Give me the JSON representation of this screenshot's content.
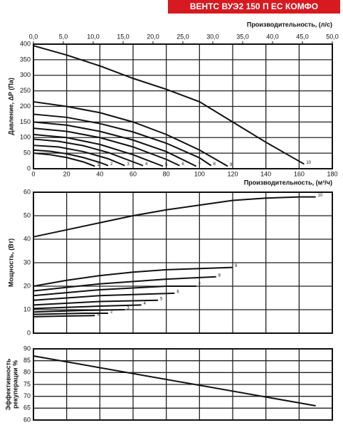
{
  "header": {
    "title": "ВЕНТС ВУЭ2 150 П ЕС КОМФО"
  },
  "chart_data": [
    {
      "type": "line",
      "ylabel": "Давление, ΔP (Па)",
      "xlabel": "Производительность, (м³/ч)",
      "x2label": "Производительность, (л/с)",
      "xlim": [
        0,
        180
      ],
      "xticks": [
        0,
        20,
        40,
        60,
        80,
        100,
        120,
        140,
        160,
        180
      ],
      "x2lim": [
        0,
        50
      ],
      "x2ticks": [
        {
          "value": 0,
          "label": "0,0"
        },
        {
          "value": 5,
          "label": "5,0"
        },
        {
          "value": 10,
          "label": "10,0"
        },
        {
          "value": 15,
          "label": "15,0"
        },
        {
          "value": 20,
          "label": "20,0"
        },
        {
          "value": 25,
          "label": "25,0"
        },
        {
          "value": 30,
          "label": "30,0"
        },
        {
          "value": 35,
          "label": "35,0"
        },
        {
          "value": 40,
          "label": "40,0"
        },
        {
          "value": 45,
          "label": "45,0"
        },
        {
          "value": 50,
          "label": "50,0"
        }
      ],
      "ylim": [
        0,
        400
      ],
      "yticks": [
        0,
        50,
        100,
        150,
        200,
        250,
        300,
        350,
        400
      ],
      "grid": true,
      "color": "#111111",
      "series": [
        {
          "name": "1",
          "x": [
            0,
            10,
            20,
            30,
            37
          ],
          "values": [
            50,
            45,
            36,
            22,
            8
          ]
        },
        {
          "name": "2",
          "x": [
            0,
            10,
            20,
            30,
            40,
            45
          ],
          "values": [
            60,
            56,
            48,
            36,
            20,
            10
          ]
        },
        {
          "name": "3",
          "x": [
            0,
            15,
            30,
            45,
            55
          ],
          "values": [
            75,
            70,
            55,
            32,
            10
          ]
        },
        {
          "name": "4",
          "x": [
            0,
            15,
            30,
            45,
            60,
            66
          ],
          "values": [
            95,
            88,
            74,
            52,
            22,
            10
          ]
        },
        {
          "name": "5",
          "x": [
            0,
            20,
            40,
            60,
            78
          ],
          "values": [
            110,
            100,
            78,
            45,
            8
          ]
        },
        {
          "name": "6",
          "x": [
            0,
            20,
            40,
            60,
            80,
            88
          ],
          "values": [
            130,
            120,
            100,
            70,
            30,
            10
          ]
        },
        {
          "name": "7",
          "x": [
            0,
            20,
            40,
            60,
            80,
            98
          ],
          "values": [
            150,
            140,
            120,
            92,
            55,
            8
          ]
        },
        {
          "name": "8",
          "x": [
            0,
            20,
            40,
            60,
            80,
            100,
            107
          ],
          "values": [
            175,
            165,
            145,
            118,
            82,
            35,
            10
          ]
        },
        {
          "name": "9",
          "x": [
            0,
            20,
            40,
            60,
            80,
            100,
            117
          ],
          "values": [
            215,
            200,
            180,
            150,
            110,
            60,
            8
          ]
        },
        {
          "name": "10",
          "x": [
            0,
            20,
            40,
            60,
            80,
            100,
            120,
            140,
            163
          ],
          "values": [
            395,
            365,
            330,
            290,
            255,
            215,
            150,
            85,
            15
          ]
        }
      ]
    },
    {
      "type": "line",
      "ylabel": "Мощность, (Вт)",
      "xlim": [
        0,
        180
      ],
      "ylim": [
        0,
        60
      ],
      "yticks": [
        0,
        10,
        20,
        30,
        40,
        50,
        60
      ],
      "grid": true,
      "color": "#111111",
      "series": [
        {
          "name": "1",
          "x": [
            0,
            20,
            37
          ],
          "values": [
            7,
            7.3,
            7.5
          ]
        },
        {
          "name": "2",
          "x": [
            0,
            30,
            45
          ],
          "values": [
            8,
            8.5,
            8.5
          ]
        },
        {
          "name": "3",
          "x": [
            0,
            30,
            55
          ],
          "values": [
            9,
            9.7,
            10
          ]
        },
        {
          "name": "4",
          "x": [
            0,
            40,
            65
          ],
          "values": [
            10.5,
            11.5,
            12
          ]
        },
        {
          "name": "5",
          "x": [
            0,
            40,
            75
          ],
          "values": [
            12,
            13.5,
            14
          ]
        },
        {
          "name": "6",
          "x": [
            0,
            40,
            85
          ],
          "values": [
            14,
            16,
            17
          ]
        },
        {
          "name": "7",
          "x": [
            0,
            40,
            80,
            98
          ],
          "values": [
            16,
            18.5,
            20,
            20
          ]
        },
        {
          "name": "8",
          "x": [
            0,
            40,
            80,
            110
          ],
          "values": [
            18,
            21,
            23,
            24
          ]
        },
        {
          "name": "9",
          "x": [
            0,
            20,
            40,
            60,
            80,
            100,
            120
          ],
          "values": [
            20,
            22.5,
            24.5,
            26,
            27,
            27.5,
            28
          ]
        },
        {
          "name": "10",
          "x": [
            0,
            20,
            40,
            60,
            80,
            100,
            120,
            140,
            160,
            170
          ],
          "values": [
            41,
            44,
            47,
            50,
            52.5,
            54.5,
            56.5,
            57.5,
            58,
            58
          ]
        }
      ]
    },
    {
      "type": "line",
      "ylabel": [
        "Эффективность",
        "рекуперации %"
      ],
      "xlim": [
        0,
        180
      ],
      "ylim": [
        60,
        90
      ],
      "yticks": [
        60,
        65,
        70,
        75,
        80,
        85,
        90
      ],
      "grid": true,
      "color": "#111111",
      "x": [
        0,
        170
      ],
      "values": [
        87,
        66
      ]
    }
  ]
}
